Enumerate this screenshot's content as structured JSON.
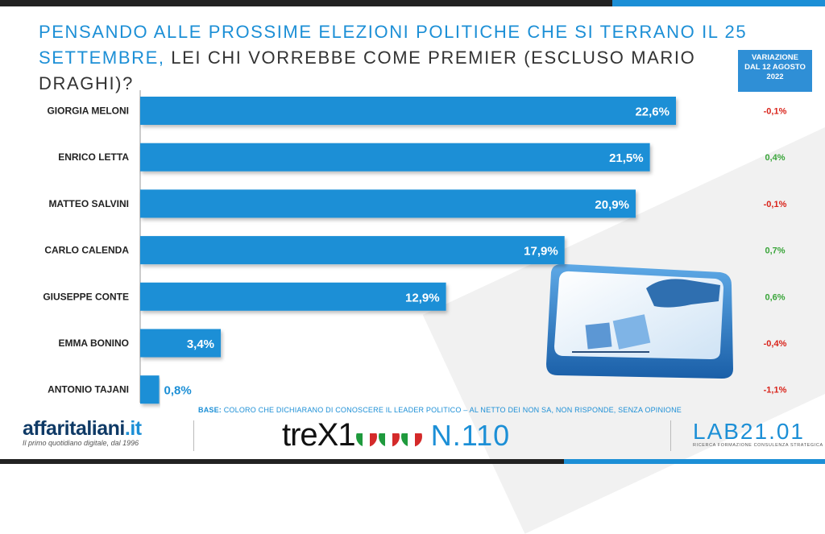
{
  "title": {
    "part1": "Pensando alle prossime elezioni politiche che si terrano il 25 settembre,",
    "part2": " lei chi vorrebbe come premier (escluso Mario Draghi)?"
  },
  "variation_header": {
    "line1": "VARIAZIONE",
    "line2": "DAL 12 AGOSTO",
    "line3": "2022"
  },
  "chart_data": {
    "type": "bar",
    "orientation": "horizontal",
    "categories": [
      "GIORGIA MELONI",
      "ENRICO LETTA",
      "MATTEO SALVINI",
      "CARLO CALENDA",
      "GIUSEPPE CONTE",
      "EMMA BONINO",
      "ANTONIO TAJANI"
    ],
    "values": [
      22.6,
      21.5,
      20.9,
      17.9,
      12.9,
      3.4,
      0.8
    ],
    "value_labels": [
      "22,6%",
      "21,5%",
      "20,9%",
      "17,9%",
      "12,9%",
      "3,4%",
      "0,8%"
    ],
    "variations": [
      "-0,1%",
      "0,4%",
      "-0,1%",
      "0,7%",
      "0,6%",
      "-0,4%",
      "-1,1%"
    ],
    "bar_color": "#1c8fd6",
    "xlim": [
      0,
      25
    ]
  },
  "colors": {
    "accent": "#1c8fd6",
    "negative": "#d9231a",
    "positive": "#3aa53a"
  },
  "base_note": {
    "label": "BASE:",
    "text": " COLORO CHE DICHIARANO DI CONOSCERE IL LEADER POLITICO – AL NETTO DEI NON SA, NON RISPONDE, SENZA OPINIONE"
  },
  "footer": {
    "logo1_main": "affaritaliani",
    "logo1_dot": ".it",
    "logo1_tag": "Il primo quotidiano digitale, dal 1996",
    "logo2_word": "treX1",
    "logo2_number": "N.110",
    "logo3_name": "LAB21.01",
    "logo3_tag": "RICERCA FORMAZIONE CONSULENZA STRATEGICA"
  }
}
